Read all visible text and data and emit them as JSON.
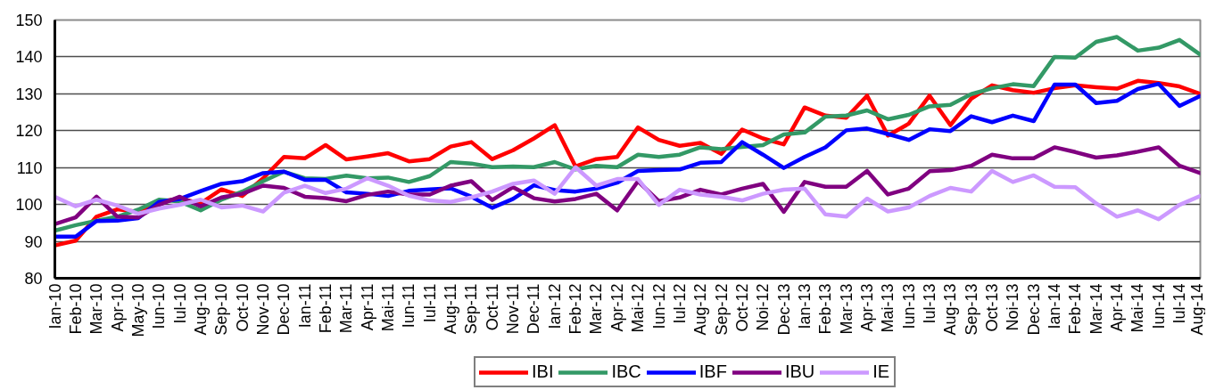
{
  "chart_data": {
    "type": "line",
    "categories": [
      "Ian-10",
      "Feb-10",
      "Mar-10",
      "Apr-10",
      "May-10",
      "Iun-10",
      "Iul-10",
      "Aug-10",
      "Sep-10",
      "Oct-10",
      "Nov-10",
      "Dec-10",
      "Ian-11",
      "Feb-11",
      "Mar-11",
      "Apr-11",
      "Mai-11",
      "Iun-11",
      "Iul-11",
      "Aug-11",
      "Sep-11",
      "Oct-11",
      "Nov-11",
      "Dec-11",
      "Ian-12",
      "Feb-12",
      "Mar-12",
      "Apr-12",
      "Mai-12",
      "Iun-12",
      "Iul-12",
      "Aug-12",
      "Sep-12",
      "Oct-12",
      "Noi-12",
      "Dec-13",
      "Ian-13",
      "Feb-13",
      "Mar-13",
      "Apr-13",
      "Mai-13",
      "Iun-13",
      "Iul-13",
      "Aug-13",
      "Sep-13",
      "Oct-13",
      "Noi-13",
      "Dec-13",
      "Ian-14",
      "Feb-14",
      "Mar-14",
      "Apr-14",
      "Mai-14",
      "Iun-14",
      "Iul-14",
      "Aug-14"
    ],
    "series": [
      {
        "name": "IBI",
        "color": "#ff0000",
        "values": [
          88.9,
          90.2,
          96.7,
          98.7,
          98.0,
          100.7,
          101.6,
          100.3,
          104.1,
          102.3,
          107.1,
          112.9,
          112.5,
          116.1,
          112.2,
          113.0,
          113.9,
          111.7,
          112.3,
          115.7,
          116.9,
          112.3,
          114.7,
          117.9,
          121.5,
          110.3,
          112.3,
          112.9,
          120.9,
          117.5,
          115.9,
          116.7,
          113.7,
          120.3,
          117.9,
          116.3,
          126.3,
          124.1,
          123.5,
          129.5,
          118.7,
          121.9,
          129.5,
          121.5,
          128.7,
          132.3,
          131.0,
          130.3,
          131.5,
          132.3,
          131.8,
          131.4,
          133.5,
          132.9,
          132.0,
          130.0
        ]
      },
      {
        "name": "IBC",
        "color": "#339966",
        "values": [
          92.9,
          94.4,
          95.6,
          96.7,
          98.6,
          101.3,
          100.8,
          98.4,
          101.3,
          103.5,
          106.3,
          108.9,
          107.1,
          106.9,
          107.8,
          107.1,
          107.3,
          106.1,
          107.7,
          111.5,
          111.1,
          110.1,
          110.3,
          110.1,
          111.5,
          109.5,
          110.5,
          110.1,
          113.5,
          112.9,
          113.5,
          115.5,
          115.0,
          115.6,
          116.1,
          119.0,
          119.5,
          123.8,
          124.1,
          125.5,
          123.1,
          124.3,
          126.6,
          127.0,
          129.9,
          131.5,
          132.6,
          132.1,
          140.0,
          139.8,
          144.1,
          145.4,
          141.7,
          142.5,
          144.6,
          140.6
        ]
      },
      {
        "name": "IBF",
        "color": "#0000ff",
        "values": [
          91.3,
          91.3,
          95.5,
          95.6,
          96.3,
          100.7,
          101.5,
          103.6,
          105.6,
          106.3,
          108.5,
          108.9,
          106.7,
          106.7,
          103.3,
          102.9,
          102.3,
          103.7,
          104.1,
          104.4,
          102.1,
          99.1,
          101.5,
          105.2,
          103.9,
          103.5,
          104.3,
          105.9,
          109.1,
          109.3,
          109.5,
          111.3,
          111.5,
          116.9,
          113.5,
          109.9,
          112.9,
          115.5,
          120.1,
          120.6,
          119.1,
          117.5,
          120.4,
          119.9,
          123.9,
          122.3,
          124.1,
          122.6,
          132.5,
          132.5,
          127.5,
          128.1,
          131.3,
          132.7,
          126.7,
          129.4
        ]
      },
      {
        "name": "IBU",
        "color": "#800080",
        "values": [
          94.7,
          96.5,
          102.1,
          96.7,
          96.5,
          99.9,
          102.1,
          99.5,
          101.9,
          102.9,
          105.1,
          104.5,
          102.1,
          101.7,
          100.9,
          102.6,
          103.5,
          102.7,
          102.7,
          105.1,
          106.3,
          101.2,
          104.7,
          101.7,
          100.8,
          101.5,
          102.9,
          98.4,
          106.3,
          100.9,
          101.9,
          104.0,
          102.7,
          104.3,
          105.6,
          98.0,
          106.1,
          104.8,
          104.8,
          109.1,
          102.7,
          104.3,
          109.0,
          109.3,
          110.5,
          113.5,
          112.5,
          112.5,
          115.5,
          114.2,
          112.7,
          113.3,
          114.3,
          115.5,
          110.5,
          108.5
        ]
      },
      {
        "name": "IE",
        "color": "#cc99ff",
        "values": [
          102.1,
          99.5,
          101.3,
          99.7,
          97.5,
          98.9,
          99.9,
          101.3,
          99.2,
          99.7,
          98.1,
          103.2,
          105.1,
          103.1,
          104.3,
          107.1,
          105.1,
          102.4,
          101.1,
          100.7,
          101.9,
          103.5,
          105.6,
          106.5,
          102.9,
          110.1,
          105.1,
          106.9,
          106.9,
          99.9,
          104.0,
          102.7,
          102.1,
          101.1,
          102.9,
          104.0,
          104.3,
          97.3,
          96.7,
          101.6,
          98.1,
          99.2,
          102.3,
          104.5,
          103.5,
          109.1,
          106.1,
          107.9,
          104.8,
          104.7,
          100.3,
          96.7,
          98.4,
          96.0,
          99.9,
          102.3
        ]
      }
    ],
    "ylim": [
      80,
      150
    ],
    "yticks": [
      80,
      90,
      100,
      110,
      120,
      130,
      140,
      150
    ],
    "grid": "y",
    "legend": "bottom"
  }
}
